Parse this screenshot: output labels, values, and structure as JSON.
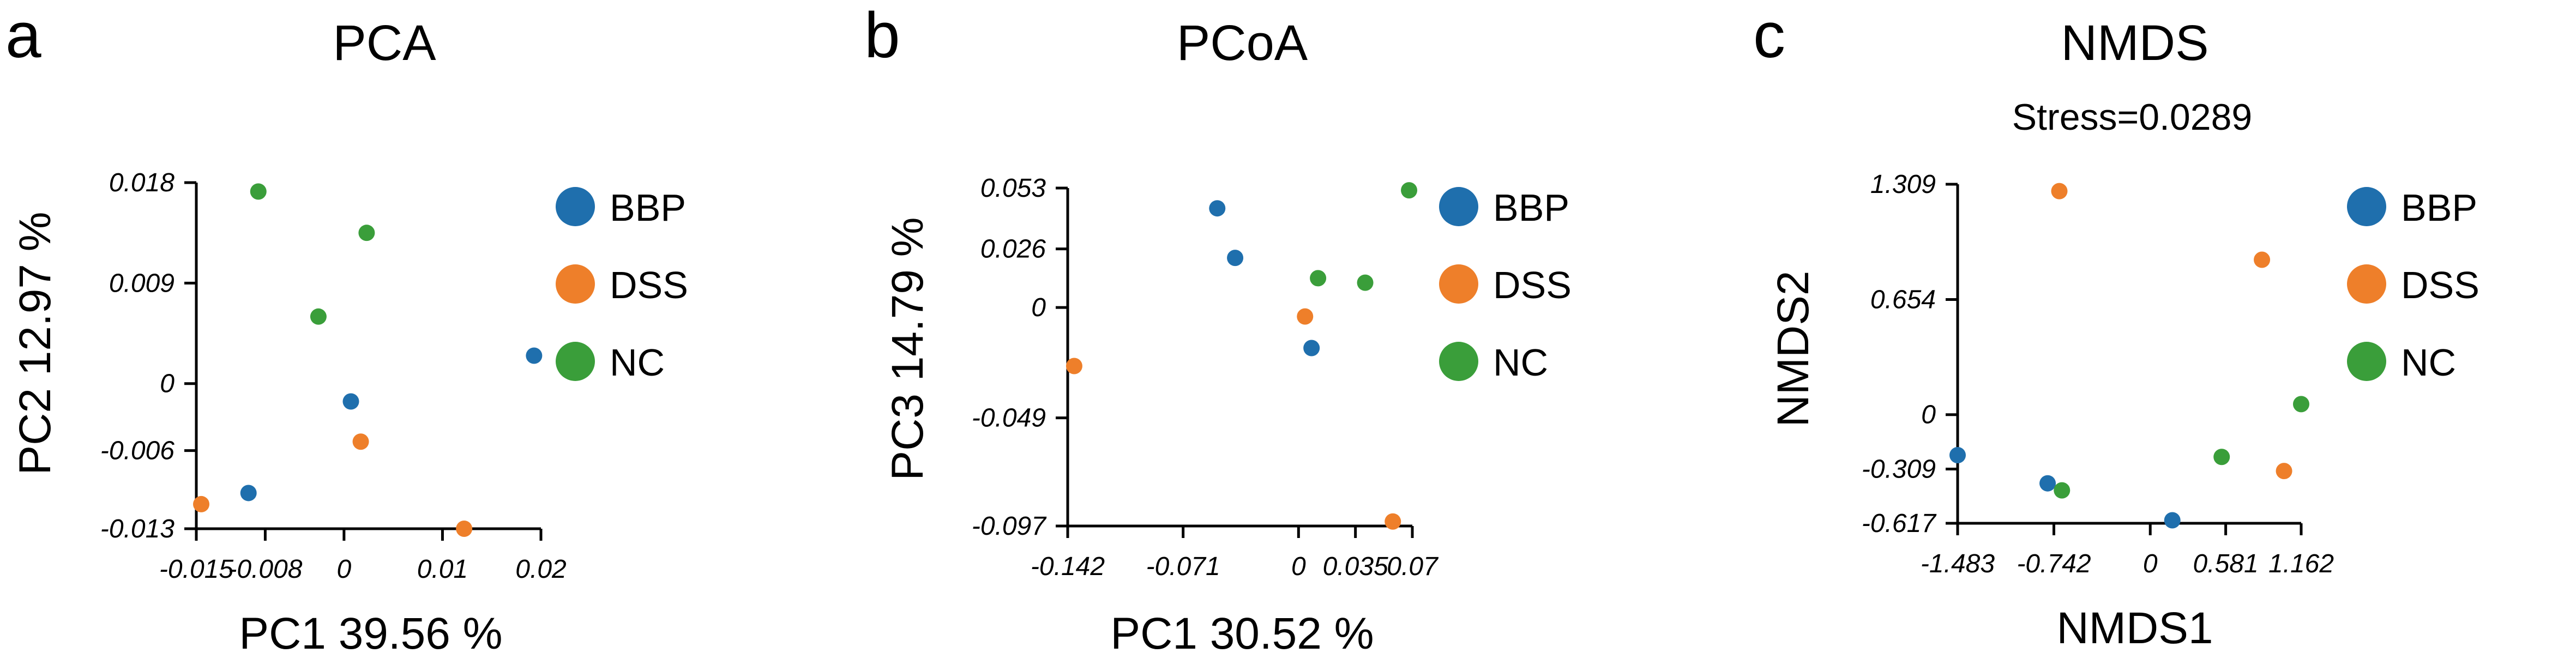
{
  "colors": {
    "BBP": "#1f6fad",
    "DSS": "#ee7f2a",
    "NC": "#3a9e3a"
  },
  "chart_data": [
    {
      "type": "scatter",
      "panel": "a",
      "title": "PCA",
      "subtitle": "",
      "xlabel": "PC1 39.56 %",
      "ylabel": "PC2 12.97 %",
      "xlim": [
        -0.015,
        0.02
      ],
      "ylim": [
        -0.013,
        0.018
      ],
      "xticks": [
        -0.015,
        -0.008,
        0,
        0.01,
        0.02
      ],
      "xtick_labels": [
        "-0.015",
        "-0.008",
        "0",
        "0.01",
        "0.02"
      ],
      "yticks": [
        -0.013,
        -0.006,
        0,
        0.009,
        0.018
      ],
      "ytick_labels": [
        "-0.013",
        "-0.006",
        "0",
        "0.009",
        "0.018"
      ],
      "legend": [
        "BBP",
        "DSS",
        "NC"
      ],
      "legend_position": "right",
      "series": [
        {
          "name": "BBP",
          "points": [
            [
              -0.0097,
              -0.0098
            ],
            [
              0.0007,
              -0.0016
            ],
            [
              0.0193,
              0.0025
            ]
          ]
        },
        {
          "name": "DSS",
          "points": [
            [
              -0.0145,
              -0.0108
            ],
            [
              0.0017,
              -0.0052
            ],
            [
              0.0122,
              -0.013
            ]
          ]
        },
        {
          "name": "NC",
          "points": [
            [
              -0.0087,
              0.0172
            ],
            [
              -0.0026,
              0.006
            ],
            [
              0.0023,
              0.0135
            ]
          ]
        }
      ]
    },
    {
      "type": "scatter",
      "panel": "b",
      "title": "PCoA",
      "subtitle": "",
      "xlabel": "PC1 30.52 %",
      "ylabel": "PC3 14.79 %",
      "xlim": [
        -0.142,
        0.07
      ],
      "ylim": [
        -0.097,
        0.053
      ],
      "xticks": [
        -0.142,
        -0.071,
        0,
        0.035,
        0.07
      ],
      "xtick_labels": [
        "-0.142",
        "-0.071",
        "0",
        "0.035",
        "0.07"
      ],
      "yticks": [
        -0.097,
        -0.049,
        0,
        0.026,
        0.053
      ],
      "ytick_labels": [
        "-0.097",
        "-0.049",
        "0",
        "0.026",
        "0.053"
      ],
      "legend": [
        "BBP",
        "DSS",
        "NC"
      ],
      "legend_position": "right",
      "series": [
        {
          "name": "BBP",
          "points": [
            [
              -0.05,
              0.044
            ],
            [
              -0.039,
              0.022
            ],
            [
              0.008,
              -0.018
            ]
          ]
        },
        {
          "name": "DSS",
          "points": [
            [
              -0.138,
              -0.026
            ],
            [
              0.004,
              -0.004
            ],
            [
              0.058,
              -0.095
            ]
          ]
        },
        {
          "name": "NC",
          "points": [
            [
              0.012,
              0.013
            ],
            [
              0.041,
              0.011
            ],
            [
              0.068,
              0.052
            ]
          ]
        }
      ]
    },
    {
      "type": "scatter",
      "panel": "c",
      "title": "NMDS",
      "subtitle": "Stress=0.0289",
      "xlabel": "NMDS1",
      "ylabel": "NMDS2",
      "xlim": [
        -1.483,
        1.162
      ],
      "ylim": [
        -0.617,
        1.309
      ],
      "xticks": [
        -1.483,
        -0.742,
        0,
        0.581,
        1.162
      ],
      "xtick_labels": [
        "-1.483",
        "-0.742",
        "0",
        "0.581",
        "1.162"
      ],
      "yticks": [
        -0.617,
        -0.309,
        0,
        0.654,
        1.309
      ],
      "ytick_labels": [
        "-0.617",
        "-0.309",
        "0",
        "0.654",
        "1.309"
      ],
      "legend": [
        "BBP",
        "DSS",
        "NC"
      ],
      "legend_position": "right",
      "series": [
        {
          "name": "BBP",
          "points": [
            [
              -1.483,
              -0.23
            ],
            [
              -0.79,
              -0.39
            ],
            [
              0.17,
              -0.6
            ]
          ]
        },
        {
          "name": "DSS",
          "points": [
            [
              -0.7,
              1.27
            ],
            [
              0.86,
              0.88
            ],
            [
              1.03,
              -0.32
            ]
          ]
        },
        {
          "name": "NC",
          "points": [
            [
              -0.68,
              -0.43
            ],
            [
              0.55,
              -0.24
            ],
            [
              1.162,
              0.06
            ]
          ]
        }
      ]
    }
  ]
}
